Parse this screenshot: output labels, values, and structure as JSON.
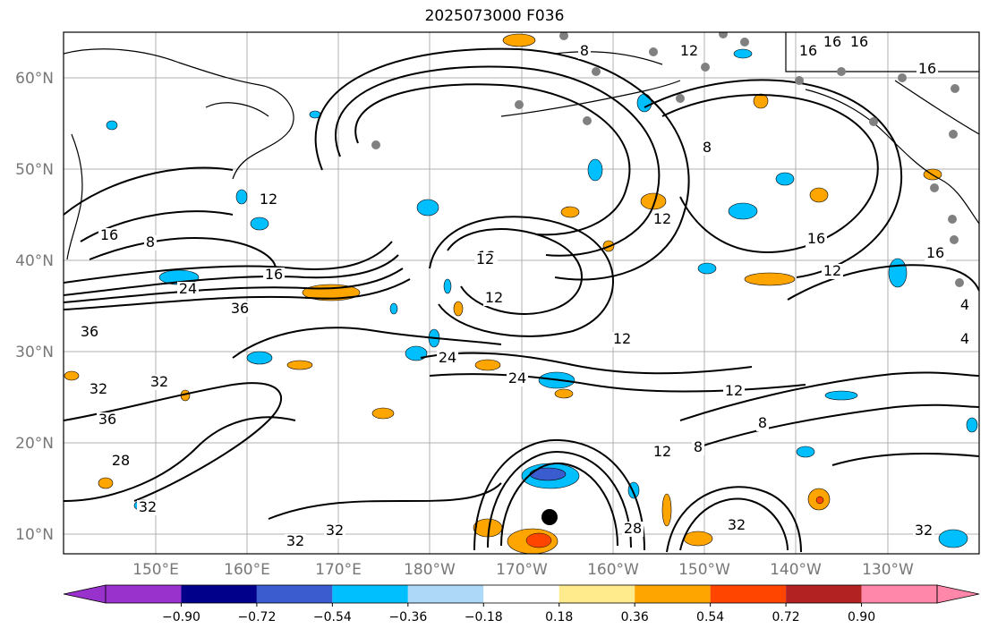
{
  "title": "2025073000 F036",
  "map": {
    "lat_labels": [
      "60°N",
      "50°N",
      "40°N",
      "30°N",
      "20°N",
      "10°N"
    ],
    "lon_labels": [
      "150°E",
      "160°E",
      "170°E",
      "180°W",
      "170°W",
      "160°W",
      "150°W",
      "140°W",
      "130°W"
    ],
    "contour_labels": [
      "8",
      "12",
      "16",
      "16",
      "16",
      "16",
      "8",
      "12",
      "12",
      "16",
      "12",
      "12",
      "16",
      "24",
      "36",
      "36",
      "32",
      "32",
      "36",
      "28",
      "32",
      "24",
      "24",
      "12",
      "12",
      "12",
      "8",
      "8",
      "32",
      "28",
      "32",
      "32",
      "32",
      "12",
      "8",
      "4",
      "4",
      "16",
      "16",
      "12"
    ],
    "contour_color": "#000000",
    "coast_color": "#000000",
    "grid_color": "#b0b0b0",
    "station_color": "#808080",
    "storm_marker_color": "#000000"
  },
  "colorbar": {
    "ticks": [
      "−0.90",
      "−0.72",
      "−0.54",
      "−0.36",
      "−0.18",
      "0.18",
      "0.36",
      "0.54",
      "0.72",
      "0.90"
    ],
    "colors": [
      "#9932cc",
      "#00008b",
      "#3b5ccf",
      "#00bfff",
      "#add8f8",
      "#ffffff",
      "#ffea8c",
      "#ffa500",
      "#ff4500",
      "#b22222",
      "#ff88aa"
    ]
  }
}
